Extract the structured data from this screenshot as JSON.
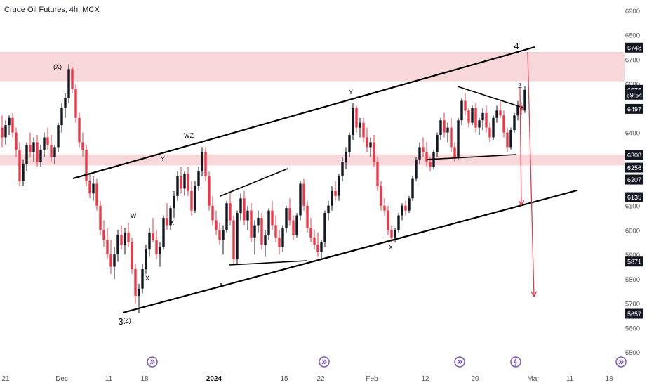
{
  "header": {
    "title": "Crude Oil Futures, 4h, MCX"
  },
  "chart_data": {
    "type": "candlestick",
    "title": "Crude Oil Futures, 4h, MCX",
    "symbol": "Crude Oil Futures",
    "interval": "4h",
    "exchange": "MCX",
    "ylim": [
      5500,
      6900
    ],
    "y_ticks": [
      5500,
      5600,
      5700,
      5800,
      5900,
      6000,
      6100,
      6200,
      6300,
      6400,
      6500,
      6600,
      6700,
      6800,
      6900
    ],
    "x_tick_labels": [
      "21",
      "Dec",
      "11",
      "18",
      "2024",
      "15",
      "22",
      "Feb",
      "12",
      "20",
      "Mar",
      "11",
      "18"
    ],
    "price_labels": [
      {
        "value": 6748,
        "text": "6748"
      },
      {
        "value": 6575,
        "text": "6575"
      },
      {
        "value": 6555,
        "text": "59:54"
      },
      {
        "value": 6497,
        "text": "6497"
      },
      {
        "value": 6308,
        "text": "6308"
      },
      {
        "value": 6256,
        "text": "6256"
      },
      {
        "value": 6207,
        "text": "6207"
      },
      {
        "value": 6135,
        "text": "6135"
      },
      {
        "value": 5871,
        "text": "5871"
      },
      {
        "value": 5657,
        "text": "5657"
      }
    ],
    "zones": [
      {
        "from": 6610,
        "to": 6730,
        "color": "#f8d7db"
      },
      {
        "from": 6265,
        "to": 6310,
        "color": "#f8d7db"
      }
    ],
    "wave_labels": [
      "(X)",
      "W",
      "X",
      "Y",
      "WZ",
      "X",
      "Y",
      "X",
      "Z",
      "4",
      "3",
      "(Z)"
    ],
    "colors": {
      "up": "#131722",
      "down": "#f23645",
      "projection": "#e23b4f",
      "accent": "#7e57c2"
    },
    "grid": false,
    "ohlc": [
      [
        6420,
        6470,
        6340,
        6380
      ],
      [
        6380,
        6450,
        6350,
        6430
      ],
      [
        6430,
        6470,
        6390,
        6460
      ],
      [
        6460,
        6480,
        6380,
        6400
      ],
      [
        6400,
        6420,
        6300,
        6330
      ],
      [
        6330,
        6360,
        6180,
        6200
      ],
      [
        6200,
        6290,
        6180,
        6270
      ],
      [
        6270,
        6360,
        6240,
        6350
      ],
      [
        6350,
        6400,
        6300,
        6320
      ],
      [
        6320,
        6380,
        6280,
        6360
      ],
      [
        6360,
        6390,
        6260,
        6280
      ],
      [
        6280,
        6350,
        6260,
        6330
      ],
      [
        6330,
        6400,
        6300,
        6380
      ],
      [
        6380,
        6420,
        6330,
        6350
      ],
      [
        6350,
        6390,
        6280,
        6300
      ],
      [
        6300,
        6350,
        6270,
        6340
      ],
      [
        6340,
        6440,
        6320,
        6430
      ],
      [
        6430,
        6520,
        6400,
        6500
      ],
      [
        6500,
        6560,
        6460,
        6540
      ],
      [
        6540,
        6680,
        6520,
        6660
      ],
      [
        6660,
        6670,
        6560,
        6580
      ],
      [
        6580,
        6600,
        6440,
        6460
      ],
      [
        6460,
        6480,
        6340,
        6360
      ],
      [
        6360,
        6400,
        6300,
        6330
      ],
      [
        6330,
        6350,
        6180,
        6200
      ],
      [
        6200,
        6230,
        6130,
        6150
      ],
      [
        6150,
        6220,
        6120,
        6190
      ],
      [
        6190,
        6210,
        6080,
        6100
      ],
      [
        6100,
        6120,
        5980,
        6000
      ],
      [
        6000,
        6040,
        5930,
        5960
      ],
      [
        5960,
        6010,
        5880,
        5900
      ],
      [
        5900,
        5960,
        5820,
        5850
      ],
      [
        5850,
        5930,
        5800,
        5900
      ],
      [
        5900,
        6000,
        5870,
        5980
      ],
      [
        5980,
        6020,
        5920,
        5940
      ],
      [
        5940,
        6010,
        5900,
        5990
      ],
      [
        5990,
        6030,
        5930,
        5950
      ],
      [
        5950,
        5970,
        5820,
        5840
      ],
      [
        5840,
        5860,
        5700,
        5730
      ],
      [
        5730,
        5780,
        5660,
        5760
      ],
      [
        5760,
        5860,
        5740,
        5840
      ],
      [
        5840,
        5940,
        5820,
        5920
      ],
      [
        5920,
        6010,
        5890,
        5990
      ],
      [
        5990,
        6050,
        5950,
        5960
      ],
      [
        5960,
        6000,
        5880,
        5900
      ],
      [
        5900,
        5950,
        5850,
        5930
      ],
      [
        5930,
        6060,
        5920,
        6050
      ],
      [
        6050,
        6110,
        6000,
        6020
      ],
      [
        6020,
        6100,
        6000,
        6090
      ],
      [
        6090,
        6160,
        6050,
        6140
      ],
      [
        6140,
        6240,
        6120,
        6220
      ],
      [
        6220,
        6260,
        6150,
        6170
      ],
      [
        6170,
        6240,
        6140,
        6230
      ],
      [
        6230,
        6260,
        6140,
        6160
      ],
      [
        6160,
        6200,
        6060,
        6080
      ],
      [
        6080,
        6200,
        6070,
        6180
      ],
      [
        6180,
        6260,
        6160,
        6240
      ],
      [
        6240,
        6340,
        6220,
        6320
      ],
      [
        6320,
        6340,
        6200,
        6220
      ],
      [
        6220,
        6240,
        6080,
        6100
      ],
      [
        6100,
        6140,
        6020,
        6040
      ],
      [
        6040,
        6080,
        5980,
        6000
      ],
      [
        6000,
        6030,
        5940,
        5960
      ],
      [
        5960,
        6020,
        5900,
        6000
      ],
      [
        6000,
        6120,
        5990,
        6110
      ],
      [
        6110,
        6150,
        6020,
        6040
      ],
      [
        6040,
        6060,
        5860,
        5880
      ],
      [
        5880,
        6080,
        5860,
        6070
      ],
      [
        6070,
        6150,
        6040,
        6130
      ],
      [
        6130,
        6160,
        6020,
        6040
      ],
      [
        6040,
        6100,
        6000,
        6080
      ],
      [
        6080,
        6110,
        5950,
        5970
      ],
      [
        5970,
        6040,
        5900,
        6020
      ],
      [
        6020,
        6080,
        5990,
        6050
      ],
      [
        6050,
        6070,
        5920,
        5940
      ],
      [
        5940,
        6000,
        5890,
        5980
      ],
      [
        5980,
        6090,
        5960,
        6080
      ],
      [
        6080,
        6120,
        6000,
        6020
      ],
      [
        6020,
        6060,
        5950,
        5970
      ],
      [
        5970,
        6000,
        5900,
        5930
      ],
      [
        5930,
        6020,
        5910,
        6010
      ],
      [
        6010,
        6100,
        5990,
        6090
      ],
      [
        6090,
        6130,
        6020,
        6040
      ],
      [
        6040,
        6060,
        5960,
        5980
      ],
      [
        5980,
        6070,
        5970,
        6060
      ],
      [
        6060,
        6200,
        6040,
        6190
      ],
      [
        6190,
        6210,
        6080,
        6100
      ],
      [
        6100,
        6120,
        5990,
        6010
      ],
      [
        6010,
        6050,
        5950,
        5970
      ],
      [
        5970,
        6000,
        5920,
        5940
      ],
      [
        5940,
        5990,
        5890,
        5910
      ],
      [
        5910,
        5960,
        5880,
        5950
      ],
      [
        5950,
        6080,
        5930,
        6070
      ],
      [
        6070,
        6120,
        6040,
        6100
      ],
      [
        6100,
        6180,
        6080,
        6160
      ],
      [
        6160,
        6200,
        6120,
        6140
      ],
      [
        6140,
        6230,
        6120,
        6220
      ],
      [
        6220,
        6300,
        6200,
        6280
      ],
      [
        6280,
        6340,
        6250,
        6320
      ],
      [
        6320,
        6400,
        6300,
        6390
      ],
      [
        6390,
        6520,
        6370,
        6500
      ],
      [
        6500,
        6510,
        6400,
        6420
      ],
      [
        6420,
        6460,
        6380,
        6440
      ],
      [
        6440,
        6460,
        6360,
        6380
      ],
      [
        6380,
        6420,
        6320,
        6340
      ],
      [
        6340,
        6380,
        6300,
        6360
      ],
      [
        6360,
        6390,
        6260,
        6280
      ],
      [
        6280,
        6300,
        6160,
        6180
      ],
      [
        6180,
        6200,
        6080,
        6100
      ],
      [
        6100,
        6130,
        6060,
        6080
      ],
      [
        6080,
        6100,
        5980,
        6000
      ],
      [
        6000,
        6020,
        5950,
        5970
      ],
      [
        5970,
        6010,
        5950,
        6000
      ],
      [
        6000,
        6070,
        5990,
        6060
      ],
      [
        6060,
        6110,
        6040,
        6100
      ],
      [
        6100,
        6120,
        6060,
        6080
      ],
      [
        6080,
        6140,
        6070,
        6130
      ],
      [
        6130,
        6220,
        6120,
        6210
      ],
      [
        6210,
        6300,
        6200,
        6290
      ],
      [
        6290,
        6360,
        6270,
        6340
      ],
      [
        6340,
        6380,
        6300,
        6320
      ],
      [
        6320,
        6360,
        6260,
        6280
      ],
      [
        6280,
        6300,
        6240,
        6260
      ],
      [
        6260,
        6330,
        6250,
        6320
      ],
      [
        6320,
        6400,
        6300,
        6390
      ],
      [
        6390,
        6460,
        6370,
        6450
      ],
      [
        6450,
        6480,
        6380,
        6400
      ],
      [
        6400,
        6440,
        6360,
        6420
      ],
      [
        6420,
        6460,
        6320,
        6340
      ],
      [
        6340,
        6360,
        6280,
        6300
      ],
      [
        6300,
        6460,
        6290,
        6450
      ],
      [
        6450,
        6540,
        6430,
        6530
      ],
      [
        6530,
        6560,
        6470,
        6490
      ],
      [
        6490,
        6500,
        6420,
        6440
      ],
      [
        6440,
        6510,
        6430,
        6500
      ],
      [
        6500,
        6520,
        6400,
        6420
      ],
      [
        6420,
        6460,
        6390,
        6450
      ],
      [
        6450,
        6500,
        6410,
        6480
      ],
      [
        6480,
        6510,
        6400,
        6420
      ],
      [
        6420,
        6440,
        6360,
        6380
      ],
      [
        6380,
        6470,
        6370,
        6460
      ],
      [
        6460,
        6510,
        6440,
        6490
      ],
      [
        6490,
        6530,
        6460,
        6470
      ],
      [
        6470,
        6490,
        6380,
        6400
      ],
      [
        6400,
        6420,
        6320,
        6340
      ],
      [
        6340,
        6420,
        6330,
        6410
      ],
      [
        6410,
        6480,
        6400,
        6470
      ],
      [
        6470,
        6530,
        6450,
        6510
      ],
      [
        6510,
        6520,
        6470,
        6490
      ],
      [
        6490,
        6590,
        6480,
        6575
      ]
    ]
  }
}
